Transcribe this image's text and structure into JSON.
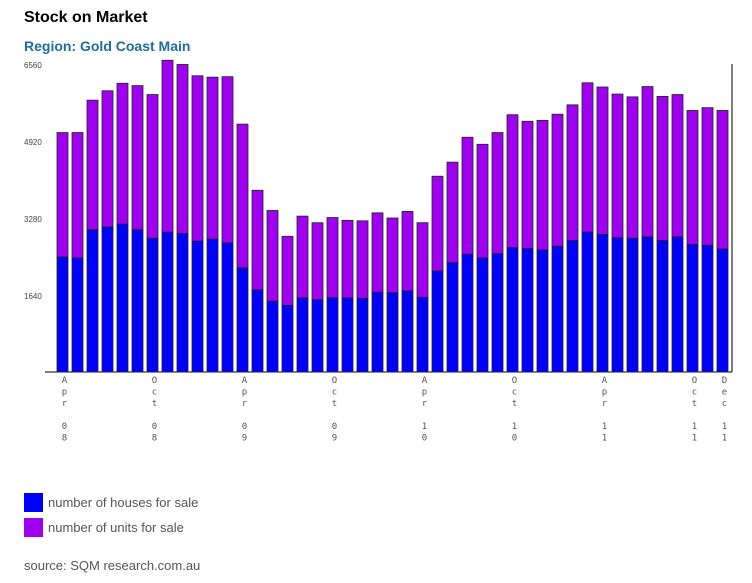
{
  "title": "Stock on Market",
  "subtitle": "Region: Gold Coast Main",
  "source": "source: SQM research.com.au",
  "legend": [
    {
      "label": "number of houses for sale",
      "color": "#0000ff"
    },
    {
      "label": "number of units for sale",
      "color": "#a000f0"
    }
  ],
  "chart_data": {
    "type": "bar",
    "stacked": true,
    "ylim": [
      0,
      6560
    ],
    "yticks": [
      "6560",
      "4920",
      "3280",
      "1640"
    ],
    "xtick_labels": [
      {
        "index": 0,
        "lines": [
          "A",
          "p",
          "r",
          "",
          "0",
          "8"
        ]
      },
      {
        "index": 6,
        "lines": [
          "O",
          "c",
          "t",
          "",
          "0",
          "8"
        ]
      },
      {
        "index": 12,
        "lines": [
          "A",
          "p",
          "r",
          "",
          "0",
          "9"
        ]
      },
      {
        "index": 18,
        "lines": [
          "O",
          "c",
          "t",
          "",
          "0",
          "9"
        ]
      },
      {
        "index": 24,
        "lines": [
          "A",
          "p",
          "r",
          "",
          "1",
          "0"
        ]
      },
      {
        "index": 30,
        "lines": [
          "O",
          "c",
          "t",
          "",
          "1",
          "0"
        ]
      },
      {
        "index": 36,
        "lines": [
          "A",
          "p",
          "r",
          "",
          "1",
          "1"
        ]
      },
      {
        "index": 42,
        "lines": [
          "O",
          "c",
          "t",
          "",
          "1",
          "1"
        ]
      },
      {
        "index": 44,
        "lines": [
          "D",
          "e",
          "c",
          "",
          "1",
          "1"
        ]
      }
    ],
    "series": [
      {
        "name": "number of houses for sale",
        "color": "#0000ff",
        "values": [
          2450,
          2430,
          3030,
          3090,
          3150,
          3030,
          2850,
          2980,
          2950,
          2790,
          2830,
          2750,
          2220,
          1750,
          1510,
          1420,
          1580,
          1540,
          1580,
          1580,
          1570,
          1700,
          1690,
          1730,
          1590,
          2150,
          2330,
          2510,
          2430,
          2520,
          2650,
          2630,
          2600,
          2680,
          2800,
          2980,
          2930,
          2860,
          2850,
          2880,
          2800,
          2880,
          2720,
          2700,
          2620
        ]
      },
      {
        "name": "number of units for sale",
        "color": "#a000f0",
        "values": [
          2650,
          2670,
          2760,
          2900,
          3000,
          3070,
          3060,
          3660,
          3600,
          3520,
          3450,
          3540,
          3060,
          2120,
          1930,
          1470,
          1740,
          1640,
          1710,
          1650,
          1650,
          1690,
          1590,
          1690,
          1590,
          2020,
          2140,
          2490,
          2420,
          2580,
          2830,
          2710,
          2760,
          2810,
          2890,
          3180,
          3140,
          3060,
          3010,
          3200,
          3070,
          3030,
          2850,
          2930,
          2950
        ]
      }
    ]
  }
}
